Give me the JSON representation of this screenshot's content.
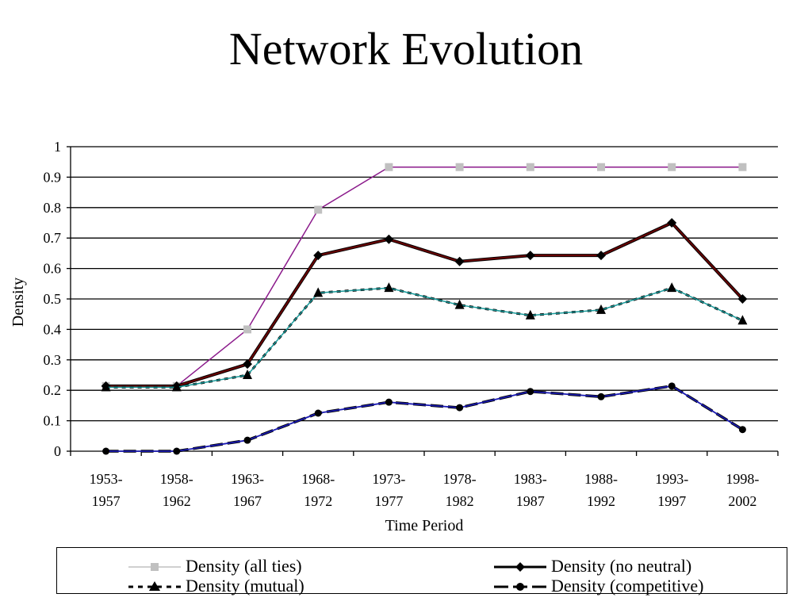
{
  "title": "Network Evolution",
  "colors": {
    "all_ties_marker": "#c0c0c0",
    "all_ties_line": "#8b1a8b",
    "no_neutral_line": "#6b0000",
    "mutual_line": "#1a9a9a",
    "competitive_line": "#1a1ab0",
    "grid": "#000000"
  },
  "chart_data": {
    "type": "line",
    "categories": [
      "1953-1957",
      "1958-1962",
      "1963-1967",
      "1968-1972",
      "1973-1977",
      "1978-1982",
      "1983-1987",
      "1988-1992",
      "1993-1997",
      "1998-2002"
    ],
    "category_lines": [
      [
        "1953-",
        "1957"
      ],
      [
        "1958-",
        "1962"
      ],
      [
        "1963-",
        "1967"
      ],
      [
        "1968-",
        "1972"
      ],
      [
        "1973-",
        "1977"
      ],
      [
        "1978-",
        "1982"
      ],
      [
        "1983-",
        "1987"
      ],
      [
        "1988-",
        "1992"
      ],
      [
        "1993-",
        "1997"
      ],
      [
        "1998-",
        "2002"
      ]
    ],
    "xlabel": "Time Period",
    "ylabel": "Density",
    "ylim": [
      0,
      1
    ],
    "yticks": [
      0,
      0.1,
      0.2,
      0.3,
      0.4,
      0.5,
      0.6,
      0.7,
      0.8,
      0.9,
      1
    ],
    "ytick_labels": [
      "0",
      "0.1",
      "0.2",
      "0.3",
      "0.4",
      "0.5",
      "0.6",
      "0.7",
      "0.8",
      "0.9",
      "1"
    ],
    "grid": true,
    "legend_position": "bottom",
    "series": [
      {
        "name": "Density (all ties)",
        "marker": "square",
        "style": "solid",
        "values": [
          0.214,
          0.214,
          0.4,
          0.793,
          0.933,
          0.933,
          0.933,
          0.933,
          0.933,
          0.933
        ]
      },
      {
        "name": "Density (no neutral)",
        "marker": "diamond",
        "style": "solid",
        "values": [
          0.214,
          0.214,
          0.286,
          0.643,
          0.696,
          0.623,
          0.643,
          0.643,
          0.75,
          0.5
        ]
      },
      {
        "name": "Density (mutual)",
        "marker": "triangle",
        "style": "dotted",
        "values": [
          0.21,
          0.21,
          0.25,
          0.52,
          0.536,
          0.48,
          0.446,
          0.464,
          0.536,
          0.429
        ]
      },
      {
        "name": "Density (competitive)",
        "marker": "circle",
        "style": "dashed",
        "values": [
          0.0,
          0.0,
          0.036,
          0.125,
          0.161,
          0.143,
          0.196,
          0.179,
          0.214,
          0.071
        ]
      }
    ]
  }
}
